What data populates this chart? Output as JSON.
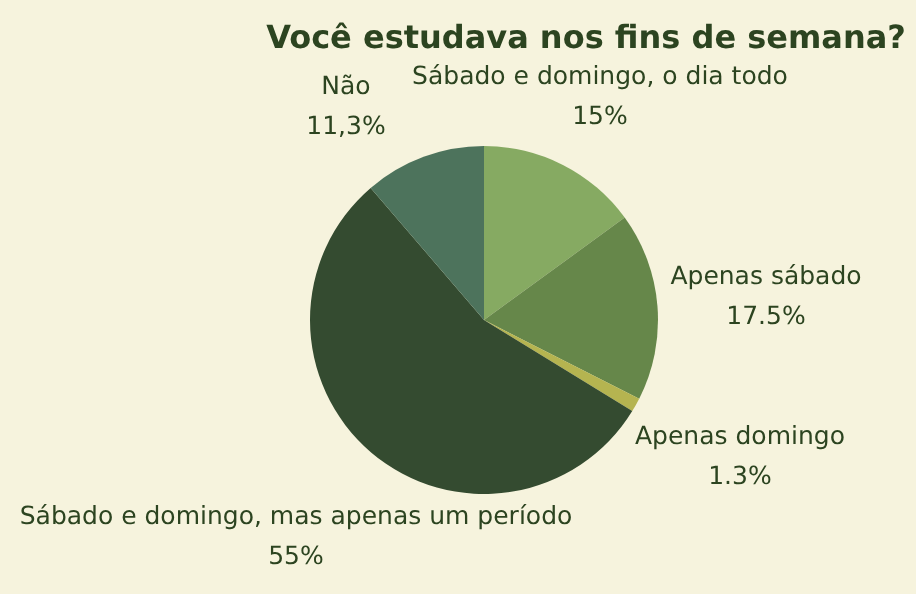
{
  "chart_data": {
    "type": "pie",
    "title": "Você estudava nos fins de semana?",
    "categories": [
      "Sábado e domingo, o dia todo",
      "Apenas sábado",
      "Apenas domingo",
      "Sábado e domingo, mas apenas um período",
      "Não"
    ],
    "values": [
      15,
      17.5,
      1.3,
      55,
      11.3
    ],
    "value_labels": [
      "15%",
      "17.5%",
      "1.3%",
      "55%",
      "11,3%"
    ],
    "colors": [
      "#86aa62",
      "#66874a",
      "#b5b450",
      "#344b30",
      "#4d735c"
    ]
  }
}
